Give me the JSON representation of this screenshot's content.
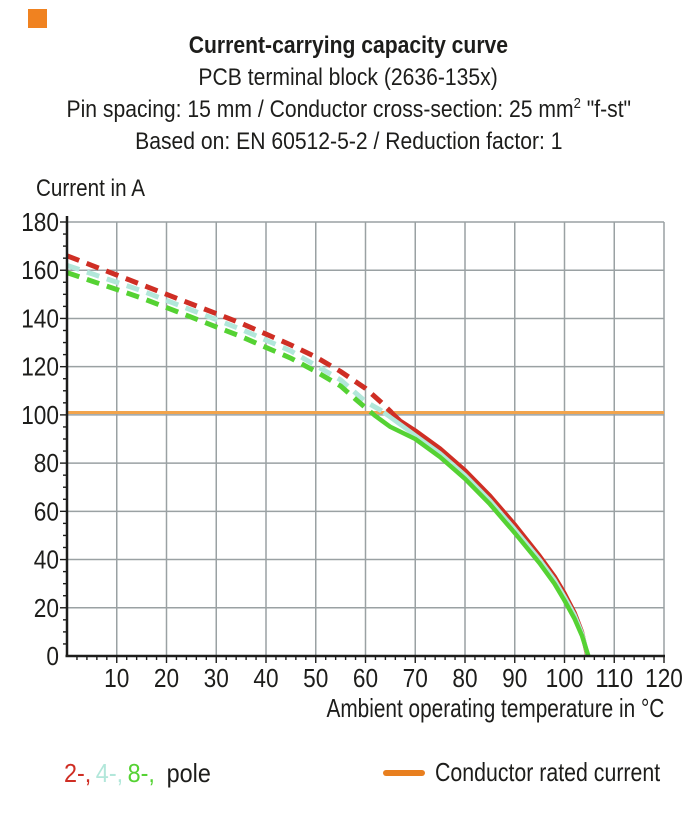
{
  "logo": {
    "color": "#f08220"
  },
  "header": {
    "title": "Current-carrying capacity curve",
    "subtitle": "PCB terminal block (2636-135x)",
    "spec_prefix": "Pin spacing: 15 mm / Conductor cross-section: 25 mm",
    "spec_sup": "2",
    "spec_suffix": " \"f-st\"",
    "basis": "Based on: EN 60512-5-2 / Reduction factor: 1"
  },
  "chart_data": {
    "type": "line",
    "title": "Current-carrying capacity curve",
    "ylabel": "Current in A",
    "xlabel": "Ambient operating temperature in °C",
    "xlim": [
      0,
      120
    ],
    "ylim": [
      0,
      180
    ],
    "grid": true,
    "x_major_step": 10,
    "x_minor_step": 2,
    "y_major_step": 20,
    "y_minor_step": 5,
    "x_ticks": [
      10,
      20,
      30,
      40,
      50,
      60,
      70,
      80,
      90,
      100,
      110,
      120
    ],
    "y_ticks": [
      0,
      20,
      40,
      60,
      80,
      100,
      120,
      140,
      160,
      180
    ],
    "colors": {
      "grid": "#9aa1a3",
      "axis": "#1d1d1b",
      "text": "#1d1d1b"
    },
    "rated_current": {
      "label": "Conductor rated current",
      "value": 101,
      "line_color": "#f2a44c",
      "swatch_color": "#e87f1f"
    },
    "style_note": "curves dashed above rated current, solid below",
    "series": [
      {
        "name": "2-pole",
        "legend_text": "2-,",
        "color": "#cf2e24",
        "points": [
          [
            0,
            166
          ],
          [
            5,
            162
          ],
          [
            10,
            158
          ],
          [
            15,
            154
          ],
          [
            20,
            150
          ],
          [
            25,
            146
          ],
          [
            30,
            142
          ],
          [
            35,
            138
          ],
          [
            40,
            133.5
          ],
          [
            45,
            129
          ],
          [
            50,
            124
          ],
          [
            55,
            118
          ],
          [
            60,
            111
          ],
          [
            63,
            105.5
          ],
          [
            65,
            101.5
          ],
          [
            67,
            97.5
          ],
          [
            70,
            93.5
          ],
          [
            75,
            86
          ],
          [
            80,
            77
          ],
          [
            85,
            66.5
          ],
          [
            90,
            54.5
          ],
          [
            95,
            41.5
          ],
          [
            98,
            33
          ],
          [
            100,
            26
          ],
          [
            102,
            18
          ],
          [
            103.5,
            10
          ],
          [
            104.6,
            0
          ]
        ]
      },
      {
        "name": "4-pole",
        "legend_text": "4-,",
        "color": "#b2e7da",
        "points": [
          [
            0,
            162
          ],
          [
            5,
            158.5
          ],
          [
            10,
            155
          ],
          [
            15,
            151.5
          ],
          [
            20,
            147.5
          ],
          [
            25,
            143.5
          ],
          [
            30,
            139.5
          ],
          [
            35,
            135.5
          ],
          [
            40,
            131
          ],
          [
            45,
            126.5
          ],
          [
            50,
            120.5
          ],
          [
            55,
            114.5
          ],
          [
            60,
            105.5
          ],
          [
            63,
            102
          ],
          [
            65,
            99
          ],
          [
            67,
            96
          ],
          [
            70,
            91.5
          ],
          [
            75,
            84
          ],
          [
            80,
            75
          ],
          [
            85,
            64.5
          ],
          [
            90,
            52.5
          ],
          [
            95,
            40
          ],
          [
            98,
            31.5
          ],
          [
            100,
            24.5
          ],
          [
            102,
            17
          ],
          [
            103.5,
            9.5
          ],
          [
            104.7,
            0
          ]
        ]
      },
      {
        "name": "8-pole",
        "legend_text": "8-,",
        "color": "#55d233",
        "points": [
          [
            0,
            159
          ],
          [
            5,
            155.5
          ],
          [
            10,
            152
          ],
          [
            15,
            148.5
          ],
          [
            20,
            144.5
          ],
          [
            25,
            140.5
          ],
          [
            30,
            136.5
          ],
          [
            35,
            132.5
          ],
          [
            40,
            128
          ],
          [
            45,
            123.5
          ],
          [
            50,
            118
          ],
          [
            55,
            112
          ],
          [
            58,
            106.5
          ],
          [
            60,
            103
          ],
          [
            62,
            99.5
          ],
          [
            65,
            95
          ],
          [
            70,
            90
          ],
          [
            75,
            82.5
          ],
          [
            80,
            73.5
          ],
          [
            85,
            63
          ],
          [
            90,
            51
          ],
          [
            95,
            38.5
          ],
          [
            98,
            30
          ],
          [
            100,
            23
          ],
          [
            102,
            15.5
          ],
          [
            103.5,
            8.5
          ],
          [
            104.8,
            0
          ]
        ]
      }
    ],
    "legend": {
      "pole_suffix": "pole",
      "rated_label": "Conductor rated current"
    }
  }
}
